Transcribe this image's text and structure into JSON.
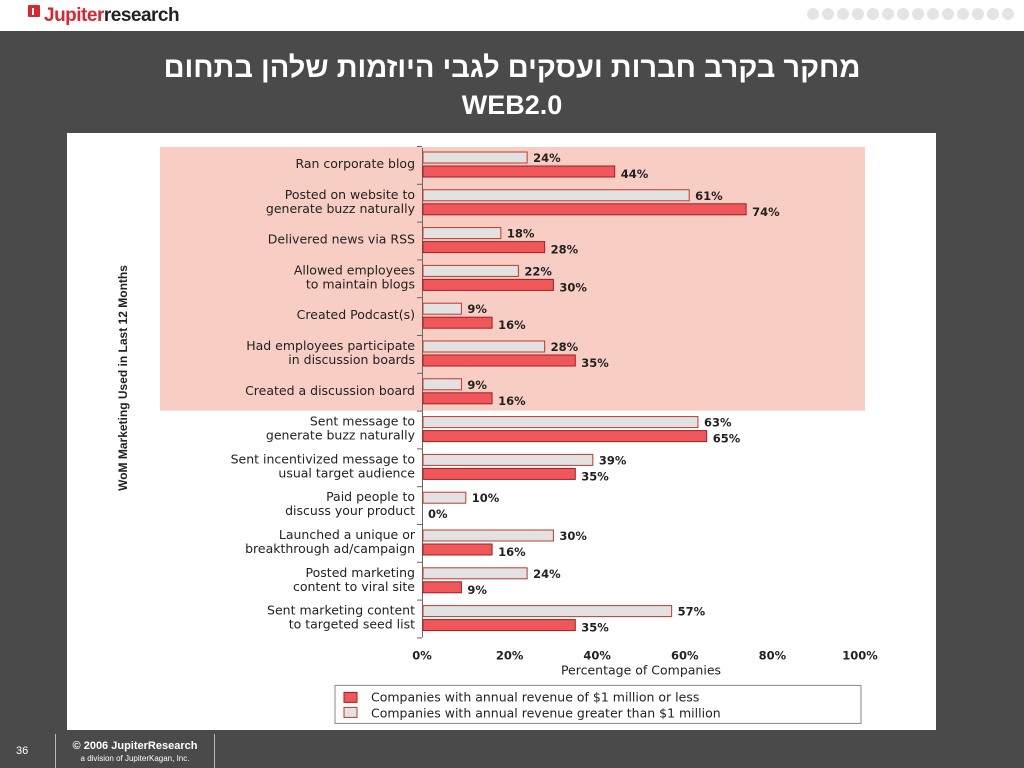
{
  "header": {
    "logo_red": "Jupiter",
    "logo_dark": "research",
    "title_line1": "מחקר בקרב חברות ועסקים לגבי היוזמות שלהן בתחום",
    "title_line2": "WEB2.0"
  },
  "footer": {
    "page_number": "36",
    "copyright": "© 2006 JupiterResearch",
    "division": "a division of JupiterKagan, Inc."
  },
  "colors": {
    "small_company_bar": "#f0575b",
    "large_company_bar": "#e2e2e2",
    "highlight_band": "#f8cdc4",
    "background": "#4a4a4a"
  },
  "chart_data": {
    "type": "bar",
    "orientation": "horizontal",
    "title": "",
    "ylabel": "WoM Marketing Used in Last 12 Months",
    "xlabel": "Percentage of Companies",
    "xlim": [
      0,
      100
    ],
    "xticks": [
      "0%",
      "20%",
      "40%",
      "60%",
      "80%",
      "100%"
    ],
    "highlighted_categories": [
      0,
      1,
      2,
      3,
      4,
      5,
      6
    ],
    "legend_position": "bottom-right",
    "categories": [
      [
        "Ran corporate blog"
      ],
      [
        "Posted on website to",
        "generate buzz naturally"
      ],
      [
        "Delivered news via RSS"
      ],
      [
        "Allowed employees",
        "to maintain blogs"
      ],
      [
        "Created Podcast(s)"
      ],
      [
        "Had employees participate",
        "in discussion boards"
      ],
      [
        "Created a discussion board"
      ],
      [
        "Sent message to",
        "generate buzz naturally"
      ],
      [
        "Sent incentivized message to",
        "usual target audience"
      ],
      [
        "Paid people to",
        "discuss your product"
      ],
      [
        "Launched a unique or",
        "breakthrough ad/campaign"
      ],
      [
        "Posted marketing",
        "content to viral site"
      ],
      [
        "Sent marketing content",
        "to targeted seed list"
      ]
    ],
    "series": [
      {
        "name": "Companies with annual revenue greater than $1 million",
        "values": [
          24,
          61,
          18,
          22,
          9,
          28,
          9,
          63,
          39,
          10,
          30,
          24,
          57
        ]
      },
      {
        "name": "Companies with annual revenue of $1 million or less",
        "values": [
          44,
          74,
          28,
          30,
          16,
          35,
          16,
          65,
          35,
          0,
          16,
          9,
          35
        ]
      }
    ]
  }
}
